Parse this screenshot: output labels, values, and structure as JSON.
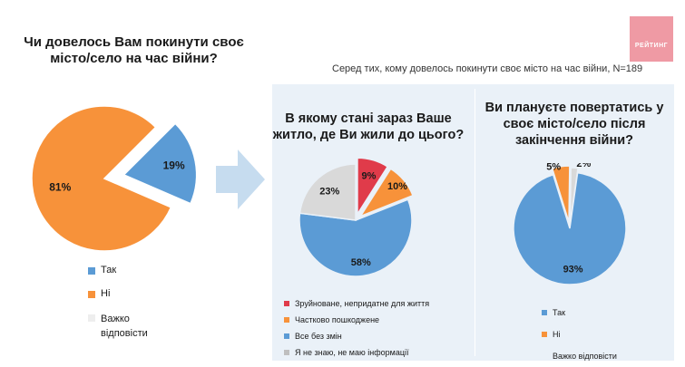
{
  "note": "Серед тих, кому довелось покинути своє місто на час війни, N=189",
  "logo": {
    "text": "РЕЙТИНГ"
  },
  "colors": {
    "orange": "#f7923a",
    "blue": "#5b9bd5",
    "red": "#e03b4a",
    "gray": "#d9d9d9",
    "panel": "#eaf1f8"
  },
  "chart_data": [
    {
      "type": "pie",
      "title": "Чи довелось Вам покинути своє місто/село на час війни?",
      "title_lines": [
        "Чи довелось Вам покинути своє",
        "місто/село на час війни?"
      ],
      "slices": [
        {
          "label": "Так",
          "value": 19,
          "text": "19%",
          "color": "#5b9bd5"
        },
        {
          "label": "Ні",
          "value": 81,
          "text": "81%",
          "color": "#f7923a"
        },
        {
          "label": "Важко відповісти",
          "value": 0,
          "text": "",
          "color": "#d9d9d9"
        }
      ],
      "legend": [
        "Так",
        "Ні",
        "Важко відповісти"
      ],
      "legend_lines": [
        [
          "Так"
        ],
        [
          "Ні"
        ],
        [
          "Важко",
          "відповісти"
        ]
      ]
    },
    {
      "type": "pie",
      "title": "В якому стані зараз Ваше житло, де Ви жили до цього?",
      "title_lines": [
        "В якому стані зараз Ваше",
        "житло, де Ви жили до цього?"
      ],
      "slices": [
        {
          "label": "Зруйноване, непридатне для життя",
          "value": 9,
          "text": "9%",
          "color": "#e03b4a"
        },
        {
          "label": "Частково пошкоджене",
          "value": 10,
          "text": "10%",
          "color": "#f7923a"
        },
        {
          "label": "Все без змін",
          "value": 58,
          "text": "58%",
          "color": "#5b9bd5"
        },
        {
          "label": "Я не знаю, не маю інформації",
          "value": 23,
          "text": "23%",
          "color": "#d9d9d9"
        }
      ],
      "legend": [
        "Зруйноване, непридатне для життя",
        "Частково пошкоджене",
        "Все без змін",
        "Я не знаю, не маю інформації"
      ]
    },
    {
      "type": "pie",
      "title": "Ви плануєте повертатись у своє місто/село після закінчення війни?",
      "title_lines": [
        "Ви плануєте повертатись у",
        "своє місто/село після",
        "закінчення війни?"
      ],
      "slices": [
        {
          "label": "Так",
          "value": 93,
          "text": "93%",
          "color": "#5b9bd5"
        },
        {
          "label": "Ні",
          "value": 5,
          "text": "5%",
          "color": "#f7923a"
        },
        {
          "label": "Важко відповісти",
          "value": 2,
          "text": "2%",
          "color": "#d9d9d9"
        }
      ],
      "legend": [
        "Так",
        "Ні",
        "Важко відповісти"
      ]
    }
  ]
}
